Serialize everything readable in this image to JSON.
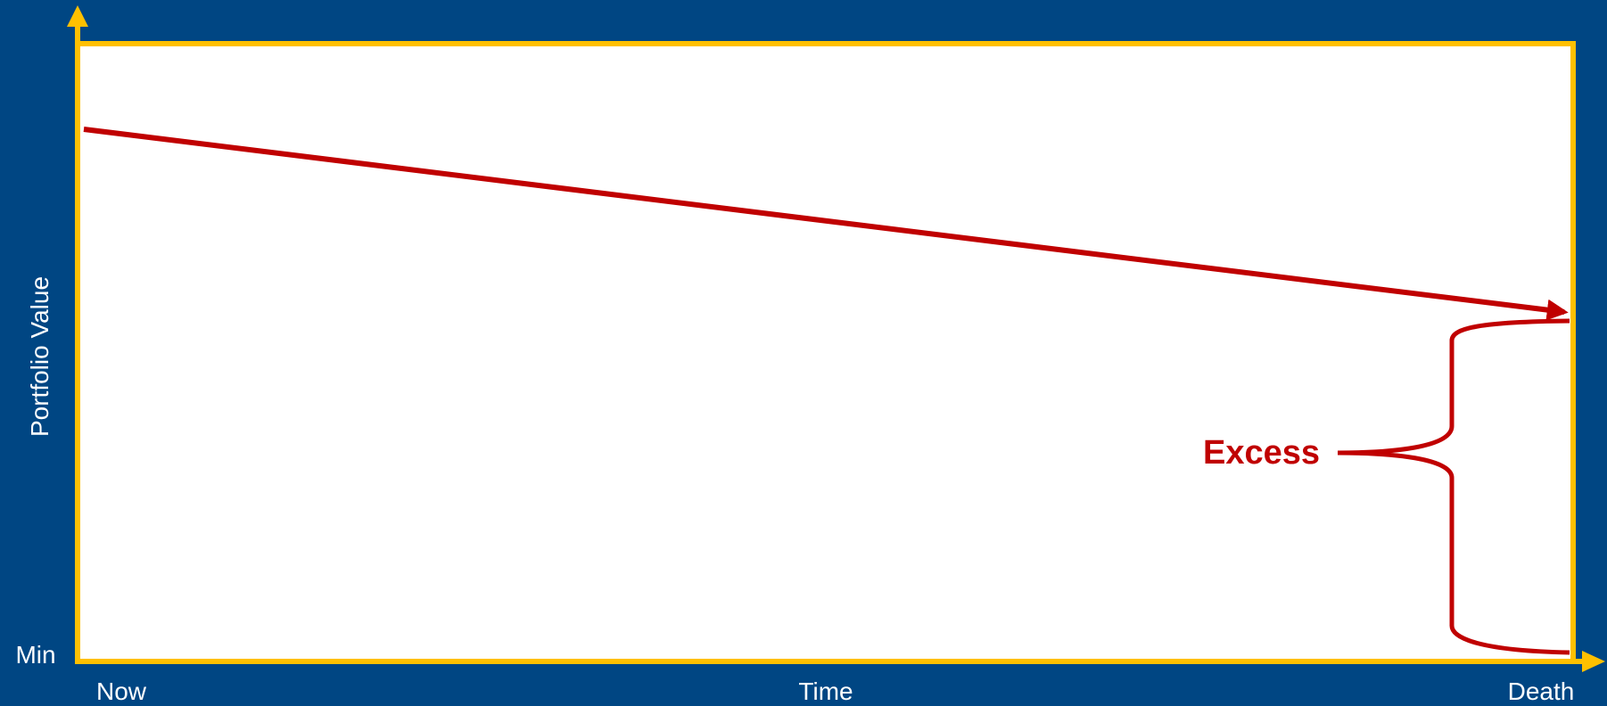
{
  "diagram": {
    "y_axis_label": "Portfolio Value",
    "y_min_label": "Min",
    "x_axis_label": "Time",
    "x_start_label": "Now",
    "x_end_label": "Death",
    "annotation": "Excess"
  },
  "colors": {
    "background": "#004683",
    "axes": "#ffc000",
    "plot_area": "#ffffff",
    "line": "#c00000"
  }
}
